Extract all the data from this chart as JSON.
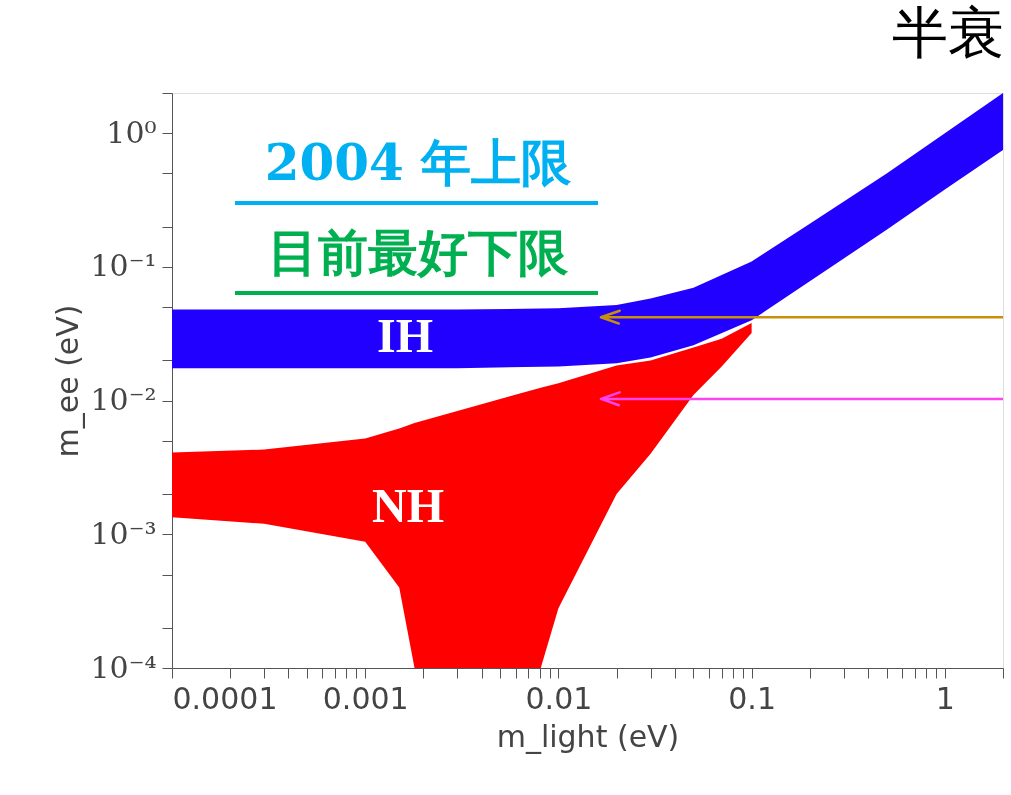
{
  "chart_data": {
    "type": "line",
    "title": "半衰",
    "xlabel": "m_light (eV)",
    "ylabel": "m_ee (eV)",
    "log": "xy",
    "grid": false,
    "xlim": [
      0.0001,
      2
    ],
    "ylim": [
      0.0001,
      2
    ],
    "xticks": [
      0.0001,
      {
        "value": 0.0002,
        "label": null
      },
      {
        "value": 0.0003,
        "label": null
      },
      {
        "value": 0.0004,
        "label": null
      },
      {
        "value": 0.0005,
        "label": null
      },
      {
        "value": 0.0006,
        "label": null
      },
      {
        "value": 0.0007,
        "label": null
      },
      {
        "value": 0.0008,
        "label": null
      },
      {
        "value": 0.0009,
        "label": null
      },
      0.001,
      {
        "value": 0.002,
        "label": null
      },
      {
        "value": 0.003,
        "label": null
      },
      {
        "value": 0.004,
        "label": null
      },
      {
        "value": 0.005,
        "label": null
      },
      {
        "value": 0.006,
        "label": null
      },
      {
        "value": 0.007,
        "label": null
      },
      {
        "value": 0.008,
        "label": null
      },
      {
        "value": 0.009,
        "label": null
      },
      0.01,
      {
        "value": 0.02,
        "label": null
      },
      {
        "value": 0.03,
        "label": null
      },
      {
        "value": 0.04,
        "label": null
      },
      {
        "value": 0.05,
        "label": null
      },
      {
        "value": 0.06,
        "label": null
      },
      {
        "value": 0.07,
        "label": null
      },
      {
        "value": 0.08,
        "label": null
      },
      {
        "value": 0.09,
        "label": null
      },
      0.1,
      {
        "value": 0.2,
        "label": null
      },
      {
        "value": 0.3,
        "label": null
      },
      {
        "value": 0.4,
        "label": null
      },
      {
        "value": 0.5,
        "label": null
      },
      {
        "value": 0.6,
        "label": null
      },
      {
        "value": 0.7,
        "label": null
      },
      {
        "value": 0.8,
        "label": null
      },
      {
        "value": 0.9,
        "label": null
      },
      1,
      {
        "value": 2,
        "label": null
      }
    ],
    "yticks": [
      {
        "value": 0.0001,
        "label": "10⁻⁴"
      },
      {
        "value": 0.0002,
        "label": null
      },
      {
        "value": 0.0005,
        "label": null
      },
      {
        "value": 0.001,
        "label": "10⁻³"
      },
      {
        "value": 0.002,
        "label": null
      },
      {
        "value": 0.005,
        "label": null
      },
      {
        "value": 0.01,
        "label": "10⁻²"
      },
      {
        "value": 0.02,
        "label": null
      },
      {
        "value": 0.05,
        "label": null
      },
      {
        "value": 0.1,
        "label": "10⁻¹"
      },
      {
        "value": 0.2,
        "label": null
      },
      {
        "value": 0.5,
        "label": null
      },
      {
        "value": 1,
        "label": "10⁰"
      },
      {
        "value": 2,
        "label": null
      }
    ],
    "series": [
      {
        "color": "#ff0000",
        "x": [
          0.0001,
          0.0003,
          0.001,
          0.0015,
          0.0018,
          0.0081,
          0.01,
          0.02,
          0.03,
          0.05,
          0.07,
          0.1
        ],
        "values": [
          null,
          null,
          null,
          null,
          null,
          null,
          null,
          null,
          null,
          null,
          null,
          null
        ],
        "upper": [
          0.0041,
          0.0043,
          0.0052,
          0.0062,
          0.0068,
          0.0125,
          0.0135,
          0.0183,
          0.02,
          0.025,
          0.029,
          0.038
        ],
        "lower": [
          0.00134,
          0.0012,
          0.00088,
          0.0004,
          0.0001,
          0.0001,
          0.00028,
          0.002,
          0.004,
          0.011,
          0.018,
          0.032
        ]
      },
      {
        "color": "#2200ff",
        "x": [
          0.0001,
          0.0003,
          0.001,
          0.003,
          0.01,
          0.02,
          0.03,
          0.05,
          0.1,
          0.2,
          0.5,
          1,
          2
        ],
        "values": [
          null,
          null,
          null,
          null,
          null,
          null,
          null,
          null,
          null,
          null,
          null,
          null,
          null
        ],
        "upper": [
          0.048,
          0.048,
          0.048,
          0.048,
          0.049,
          0.052,
          0.058,
          0.07,
          0.11,
          0.21,
          0.5,
          1.0,
          2.0
        ],
        "lower": [
          0.0175,
          0.0175,
          0.0175,
          0.0175,
          0.018,
          0.019,
          0.021,
          0.026,
          0.04,
          0.078,
          0.19,
          0.38,
          0.75
        ]
      }
    ],
    "ref_lines": [
      {
        "axis": "y",
        "value": 0.042,
        "label": null,
        "color": "#c8900a"
      },
      {
        "axis": "y",
        "value": 0.0103,
        "label": null,
        "color": "#ff44ee"
      }
    ],
    "annotations": [
      "2004 年上限",
      "目前最好下限",
      "IH",
      "NH"
    ]
  }
}
